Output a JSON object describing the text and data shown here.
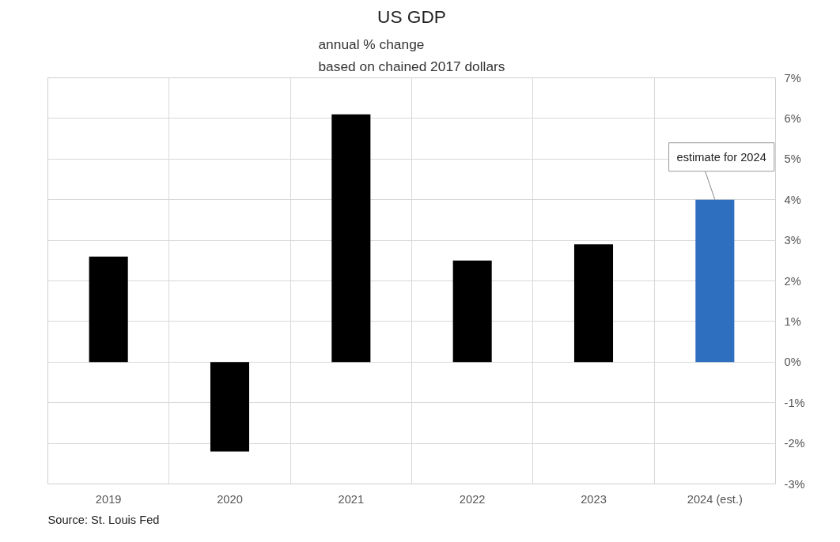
{
  "chart_data": {
    "type": "bar",
    "title": "US GDP",
    "subtitle": "annual % change\nbased on chained 2017 dollars",
    "categories": [
      "2019",
      "2020",
      "2021",
      "2022",
      "2023",
      "2024 (est.)"
    ],
    "values": [
      2.6,
      -2.2,
      6.1,
      2.5,
      2.9,
      4.0
    ],
    "colors": [
      "#000000",
      "#000000",
      "#000000",
      "#000000",
      "#000000",
      "#2e6fbf"
    ],
    "ylim": [
      -3,
      7
    ],
    "yticks": [
      {
        "value": -3,
        "label": "-3%"
      },
      {
        "value": -2,
        "label": "-2%"
      },
      {
        "value": -1,
        "label": "-1%"
      },
      {
        "value": 0,
        "label": "0%"
      },
      {
        "value": 1,
        "label": "1%"
      },
      {
        "value": 2,
        "label": "2%"
      },
      {
        "value": 3,
        "label": "3%"
      },
      {
        "value": 4,
        "label": "4%"
      },
      {
        "value": 5,
        "label": "5%"
      },
      {
        "value": 6,
        "label": "6%"
      },
      {
        "value": 7,
        "label": "7%"
      }
    ],
    "grid": true,
    "annotations": [
      {
        "text": "estimate for 2024",
        "x": "2024 (est.)",
        "y": 4.0
      },
      "Source: St. Louis Fed"
    ]
  }
}
